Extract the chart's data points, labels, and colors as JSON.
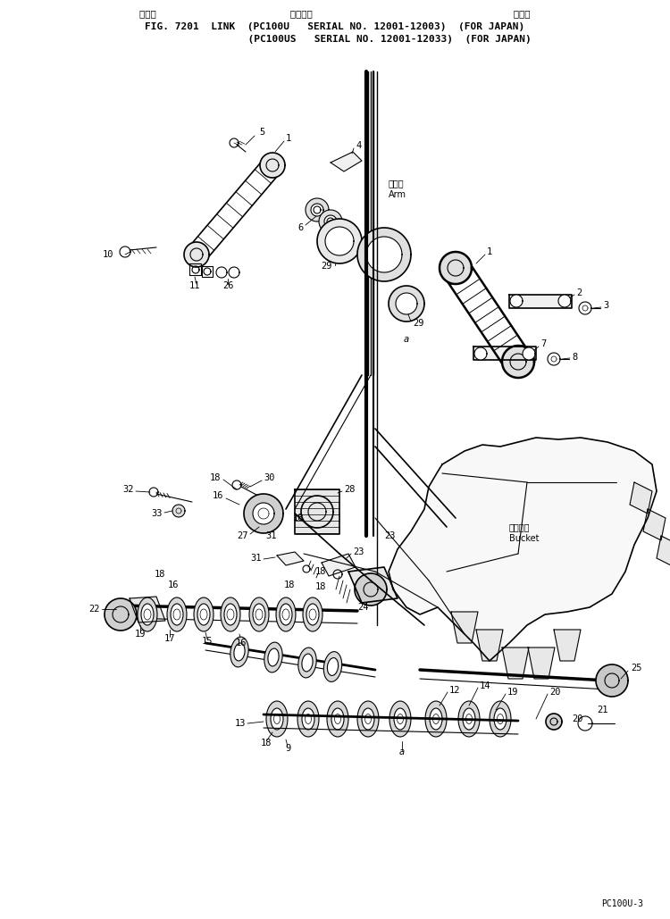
{
  "bg_color": "#ffffff",
  "text_color": "#000000",
  "title_japanese": "リンク                        適用号機                                    国内向",
  "title_line2": "FIG. 7201  LINK  (PC100U   SERIAL NO. 12001-12003)  (FOR JAPAN)",
  "title_line3": "                  (PC100US   SERIAL NO. 12001-12033)  (FOR JAPAN)",
  "watermark": "PC100U-3",
  "arm_label_jp": "アーム",
  "arm_label_en": "Arm",
  "bucket_label_jp": "バケット",
  "bucket_label_en": "Bucket"
}
